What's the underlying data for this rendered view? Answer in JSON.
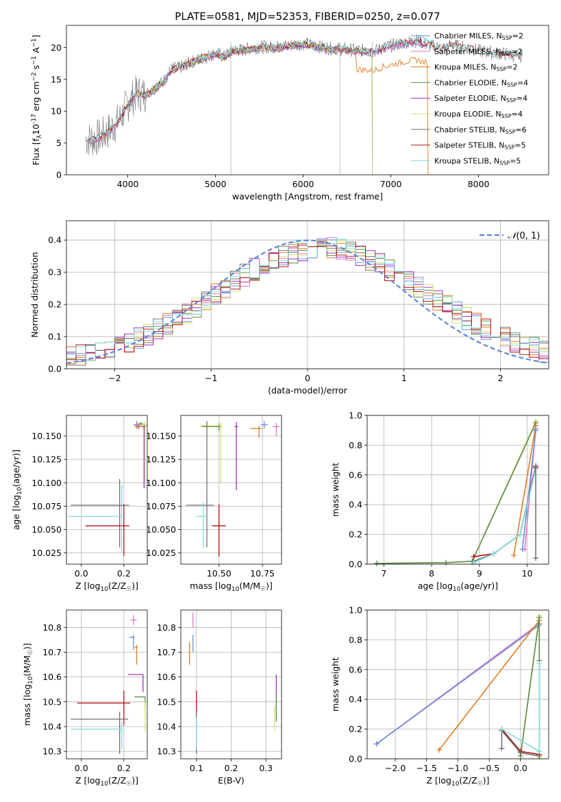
{
  "title": "PLATE=0581, MJD=52353, FIBERID=0250, z=0.077",
  "colors": {
    "chabrier_miles": "#6a8fd6",
    "salpeter_miles": "#e377c2",
    "kroupa_miles": "#de7b1e",
    "chabrier_elodie": "#5a8a4a",
    "salpeter_elodie": "#9a30c0",
    "kroupa_elodie": "#d4e36a",
    "chabrier_stelib": "#707070",
    "salpeter_stelib": "#b01010",
    "kroupa_stelib": "#7fdde0",
    "gaussian": "#5f86d4"
  },
  "chart_data": [
    {
      "id": "spectrum",
      "type": "line",
      "xlabel": "wavelength [Angstrom, rest frame]",
      "ylabel": "Flux [f",
      "ylabel_sub": "λ",
      "ylabel_rest": "10",
      "ylabel_exp": "-17",
      "ylabel_units": " erg cm",
      "xlim": [
        3300,
        8800
      ],
      "ylim": [
        0,
        23.5
      ],
      "xticks": [
        4000,
        5000,
        6000,
        7000,
        8000
      ],
      "yticks": [
        0,
        5,
        10,
        15,
        20
      ],
      "grid": false,
      "legend_position": "top-right",
      "continuum": {
        "x": [
          3500,
          3600,
          3700,
          3800,
          3900,
          4000,
          4100,
          4200,
          4300,
          4400,
          4500,
          4600,
          4700,
          4800,
          4900,
          5000,
          5100,
          5200,
          5300,
          5400,
          5500,
          5600,
          5700,
          5800,
          5900,
          6000,
          6100,
          6200,
          6300,
          6400,
          6500,
          6600,
          6700,
          6800,
          6900,
          7000,
          7100,
          7200,
          7300,
          7400,
          7500,
          7600,
          7700,
          7800,
          7900,
          8000,
          8100,
          8200,
          8300,
          8400,
          8500
        ],
        "y": [
          5.5,
          5.5,
          6.0,
          7.0,
          8.5,
          11.0,
          12.8,
          12.5,
          13.5,
          14.5,
          16.5,
          16.8,
          17.5,
          18.0,
          18.5,
          19.0,
          18.5,
          19.5,
          19.5,
          19.8,
          20.0,
          20.0,
          20.0,
          20.2,
          20.4,
          20.5,
          20.3,
          20.0,
          19.8,
          19.7,
          19.6,
          19.5,
          19.4,
          19.3,
          19.8,
          20.2,
          20.5,
          20.8,
          21.0,
          20.5,
          20.0,
          19.8,
          20.3,
          20.0,
          19.8,
          19.4,
          19.2,
          19.0,
          18.9,
          18.7,
          18.5
        ]
      },
      "series": [
        {
          "name": "Chabrier MILES, N",
          "sub": "SSP",
          "rest": "=2",
          "key": "chabrier_miles"
        },
        {
          "name": "Salpeter MILES, N",
          "sub": "SSP",
          "rest": "=2",
          "key": "salpeter_miles"
        },
        {
          "name": "Kroupa MILES, N",
          "sub": "SSP",
          "rest": "=2",
          "key": "kroupa_miles"
        },
        {
          "name": "Chabrier ELODIE, N",
          "sub": "SSP",
          "rest": "=4",
          "key": "chabrier_elodie"
        },
        {
          "name": "Salpeter ELODIE, N",
          "sub": "SSP",
          "rest": "=4",
          "key": "salpeter_elodie"
        },
        {
          "name": "Kroupa ELODIE, N",
          "sub": "SSP",
          "rest": "=4",
          "key": "kroupa_elodie"
        },
        {
          "name": "Chabrier STELIB, N",
          "sub": "SSP",
          "rest": "=6",
          "key": "chabrier_stelib"
        },
        {
          "name": "Salpeter STELIB, N",
          "sub": "SSP",
          "rest": "=5",
          "key": "salpeter_stelib"
        },
        {
          "name": "Kroupa STELIB, N",
          "sub": "SSP",
          "rest": "=5",
          "key": "kroupa_stelib"
        }
      ]
    },
    {
      "id": "residuals",
      "type": "histogram",
      "xlabel": "(data-model)/error",
      "ylabel": "Normed distribution",
      "xlim": [
        -2.5,
        2.5
      ],
      "ylim": [
        0,
        0.46
      ],
      "xticks": [
        -2,
        -1,
        0,
        1,
        2
      ],
      "yticks": [
        0.0,
        0.1,
        0.2,
        0.3,
        0.4
      ],
      "grid": true,
      "legend_position": "top-right",
      "legend_label": "(0, 1)",
      "bin_width": 0.1
    },
    {
      "id": "z_age",
      "type": "errorbar",
      "xlabel": "Z [log",
      "xlabel_sub": "10",
      "xlabel_rest": "(Z/Z",
      "ylabel": "age  [log",
      "ylabel_sub": "10",
      "ylabel_rest": "(age/yr)]",
      "xlim": [
        -0.07,
        0.31
      ],
      "ylim": [
        10.013,
        10.172
      ],
      "xticks": [
        0.0,
        0.2
      ],
      "yticks": [
        10.025,
        10.05,
        10.075,
        10.1,
        10.125,
        10.15
      ],
      "grid": true,
      "points": [
        {
          "key": "chabrier_miles",
          "x": 0.26,
          "y": 10.162,
          "xe": [
            0.015,
            0.015
          ],
          "ye": [
            0.004,
            0.004
          ]
        },
        {
          "key": "salpeter_miles",
          "x": 0.265,
          "y": 10.161,
          "xe": [
            0.01,
            0.01
          ],
          "ye": [
            0.003,
            0.003
          ]
        },
        {
          "key": "kroupa_miles",
          "x": 0.27,
          "y": 10.16,
          "xe": [
            0.02,
            0.02
          ],
          "ye": [
            0.003,
            0.003
          ]
        },
        {
          "key": "chabrier_elodie",
          "x": 0.28,
          "y": 10.163,
          "xe": [
            0.01,
            0.01
          ],
          "ye": [
            0.002,
            0.002
          ]
        },
        {
          "key": "salpeter_elodie",
          "x": 0.295,
          "y": 10.16,
          "xe": [
            0.01,
            0.01
          ],
          "ye": [
            0.066,
            0.003
          ]
        },
        {
          "key": "kroupa_elodie",
          "x": 0.3,
          "y": 10.162,
          "xe": [
            0.02,
            0.01
          ],
          "ye": [
            0.06,
            0.003
          ]
        },
        {
          "key": "chabrier_stelib",
          "x": 0.18,
          "y": 10.076,
          "xe": [
            0.23,
            0.045
          ],
          "ye": [
            0.045,
            0.028
          ]
        },
        {
          "key": "salpeter_stelib",
          "x": 0.2,
          "y": 10.054,
          "xe": [
            0.18,
            0.025
          ],
          "ye": [
            0.032,
            0.023
          ]
        },
        {
          "key": "kroupa_stelib",
          "x": 0.19,
          "y": 10.064,
          "xe": [
            0.25,
            0.0
          ],
          "ye": [
            0.038,
            0.034
          ]
        }
      ]
    },
    {
      "id": "mass_age",
      "type": "errorbar",
      "xlabel": "mass [log",
      "xlabel_sub": "10",
      "xlabel_rest": "(M/M",
      "xlim": [
        10.28,
        10.86
      ],
      "ylim": [
        10.013,
        10.172
      ],
      "xticks": [
        10.5,
        10.75
      ],
      "xtick_labels": [
        "10.50",
        "10.75"
      ],
      "yticks": [
        10.025,
        10.05,
        10.075,
        10.1,
        10.125,
        10.15
      ],
      "grid": true,
      "points": [
        {
          "key": "chabrier_miles",
          "x": 10.76,
          "y": 10.162,
          "xe": [
            0.02,
            0.02
          ],
          "ye": [
            0.004,
            0.004
          ]
        },
        {
          "key": "salpeter_miles",
          "x": 10.83,
          "y": 10.16,
          "xe": [
            0.02,
            0.02
          ],
          "ye": [
            0.01,
            0.004
          ]
        },
        {
          "key": "kroupa_miles",
          "x": 10.73,
          "y": 10.158,
          "xe": [
            0.05,
            0.02
          ],
          "ye": [
            0.01,
            0.003
          ]
        },
        {
          "key": "chabrier_elodie",
          "x": 10.5,
          "y": 10.16,
          "xe": [
            0.1,
            0.01
          ],
          "ye": [
            0.004,
            0.003
          ]
        },
        {
          "key": "salpeter_elodie",
          "x": 10.6,
          "y": 10.16,
          "xe": [
            0.01,
            0.01
          ],
          "ye": [
            0.068,
            0.005
          ]
        },
        {
          "key": "kroupa_elodie",
          "x": 10.51,
          "y": 10.161,
          "xe": [
            0.12,
            0.01
          ],
          "ye": [
            0.061,
            0.004
          ]
        },
        {
          "key": "chabrier_stelib",
          "x": 10.43,
          "y": 10.076,
          "xe": [
            0.12,
            0.04
          ],
          "ye": [
            0.045,
            0.09
          ]
        },
        {
          "key": "salpeter_stelib",
          "x": 10.5,
          "y": 10.054,
          "xe": [
            0.04,
            0.04
          ],
          "ye": [
            0.033,
            0.023
          ]
        },
        {
          "key": "kroupa_stelib",
          "x": 10.41,
          "y": 10.064,
          "xe": [
            0.04,
            0.02
          ],
          "ye": [
            0.034,
            0.015
          ]
        }
      ]
    },
    {
      "id": "age_weight",
      "type": "line",
      "xlabel": "age  [log",
      "xlabel_sub": "10",
      "xlabel_rest": "(age/yr)]",
      "ylabel": "mass weight",
      "xlim": [
        6.65,
        10.45
      ],
      "ylim": [
        0,
        1.0
      ],
      "xticks": [
        7,
        8,
        9,
        10
      ],
      "yticks": [
        0.0,
        0.2,
        0.4,
        0.6,
        0.8,
        1.0
      ],
      "grid": true,
      "series": [
        {
          "key": "kroupa_elodie",
          "x": [
            6.85,
            8.3,
            8.85,
            10.18
          ],
          "y": [
            0.005,
            0.01,
            0.02,
            0.96
          ]
        },
        {
          "key": "chabrier_elodie",
          "x": [
            6.85,
            8.3,
            8.85,
            10.18
          ],
          "y": [
            0.005,
            0.01,
            0.02,
            0.95
          ]
        },
        {
          "key": "kroupa_miles",
          "x": [
            9.72,
            10.18
          ],
          "y": [
            0.06,
            0.93
          ]
        },
        {
          "key": "salpeter_miles",
          "x": [
            9.95,
            10.18
          ],
          "y": [
            0.1,
            0.91
          ]
        },
        {
          "key": "chabrier_miles",
          "x": [
            9.9,
            10.18
          ],
          "y": [
            0.1,
            0.9
          ]
        },
        {
          "key": "salpeter_stelib",
          "x": [
            8.88,
            9.3,
            9.85,
            10.18
          ],
          "y": [
            0.05,
            0.07,
            0.2,
            0.65
          ]
        },
        {
          "key": "chabrier_stelib",
          "x": [
            8.88,
            9.3,
            9.85,
            10.18
          ],
          "y": [
            0.02,
            0.07,
            0.2,
            0.66
          ]
        },
        {
          "key": "kroupa_stelib",
          "x": [
            8.88,
            9.3,
            9.85,
            10.18
          ],
          "y": [
            0.01,
            0.07,
            0.2,
            0.64
          ]
        },
        {
          "key": "chabrier_stelib",
          "x": [
            10.18,
            10.18
          ],
          "y": [
            0.66,
            0.04
          ]
        }
      ]
    },
    {
      "id": "z_mass",
      "type": "errorbar",
      "xlabel": "Z [log",
      "xlabel_sub": "10",
      "xlabel_rest": "(Z/Z",
      "ylabel": "mass [log",
      "ylabel_sub": "10",
      "ylabel_rest": "(M/M",
      "xlim": [
        -0.07,
        0.31
      ],
      "ylim": [
        10.27,
        10.87
      ],
      "xticks": [
        0.0,
        0.2
      ],
      "yticks": [
        10.3,
        10.4,
        10.5,
        10.6,
        10.7,
        10.8
      ],
      "grid": true,
      "points": [
        {
          "key": "salpeter_miles",
          "x": 0.245,
          "y": 10.83,
          "xe": [
            0.015,
            0.015
          ],
          "ye": [
            0.02,
            0.02
          ]
        },
        {
          "key": "chabrier_miles",
          "x": 0.245,
          "y": 10.76,
          "xe": [
            0.02,
            0.005
          ],
          "ye": [
            0.05,
            0.01
          ]
        },
        {
          "key": "kroupa_miles",
          "x": 0.26,
          "y": 10.72,
          "xe": [
            0.01,
            0.005
          ],
          "ye": [
            0.07,
            0.01
          ]
        },
        {
          "key": "salpeter_elodie",
          "x": 0.29,
          "y": 10.61,
          "xe": [
            0.07,
            0.0
          ],
          "ye": [
            0.07,
            0.0
          ]
        },
        {
          "key": "chabrier_elodie",
          "x": 0.3,
          "y": 10.52,
          "xe": [
            0.05,
            0.0
          ],
          "ye": [
            0.05,
            0.0
          ]
        },
        {
          "key": "kroupa_elodie",
          "x": 0.3,
          "y": 10.5,
          "xe": [
            0.01,
            0.0
          ],
          "ye": [
            0.12,
            0.0
          ]
        },
        {
          "key": "salpeter_stelib",
          "x": 0.2,
          "y": 10.495,
          "xe": [
            0.22,
            0.03
          ],
          "ye": [
            0.09,
            0.05
          ]
        },
        {
          "key": "chabrier_stelib",
          "x": 0.18,
          "y": 10.43,
          "xe": [
            0.23,
            0.04
          ],
          "ye": [
            0.14,
            0.03
          ]
        },
        {
          "key": "kroupa_stelib",
          "x": 0.19,
          "y": 10.39,
          "xe": [
            0.24,
            0.0
          ],
          "ye": [
            0.08,
            0.03
          ]
        }
      ]
    },
    {
      "id": "ebv_mass",
      "type": "errorbar",
      "xlabel": "E(B-V)",
      "xlim": [
        0.055,
        0.345
      ],
      "ylim": [
        10.27,
        10.87
      ],
      "xticks": [
        0.1,
        0.2,
        0.3
      ],
      "yticks": [
        10.3,
        10.4,
        10.5,
        10.6,
        10.7,
        10.8
      ],
      "grid": true,
      "points": [
        {
          "key": "salpeter_miles",
          "x": 0.09,
          "y": 10.83,
          "xe": [
            0,
            0
          ],
          "ye": [
            0.03,
            0.03
          ]
        },
        {
          "key": "chabrier_miles",
          "x": 0.09,
          "y": 10.75,
          "xe": [
            0,
            0
          ],
          "ye": [
            0.05,
            0.02
          ]
        },
        {
          "key": "kroupa_miles",
          "x": 0.08,
          "y": 10.72,
          "xe": [
            0,
            0
          ],
          "ye": [
            0.07,
            0.02
          ]
        },
        {
          "key": "salpeter_elodie",
          "x": 0.33,
          "y": 10.55,
          "xe": [
            0,
            0
          ],
          "ye": [
            0.08,
            0.06
          ]
        },
        {
          "key": "chabrier_elodie",
          "x": 0.33,
          "y": 10.5,
          "xe": [
            0,
            0
          ],
          "ye": [
            0.08,
            0.03
          ]
        },
        {
          "key": "kroupa_elodie",
          "x": 0.325,
          "y": 10.45,
          "xe": [
            0,
            0
          ],
          "ye": [
            0.07,
            0.03
          ]
        },
        {
          "key": "salpeter_stelib",
          "x": 0.1,
          "y": 10.495,
          "xe": [
            0,
            0
          ],
          "ye": [
            0.09,
            0.05
          ]
        },
        {
          "key": "chabrier_stelib",
          "x": 0.1,
          "y": 10.4,
          "xe": [
            0,
            0
          ],
          "ye": [
            0.11,
            0.06
          ]
        },
        {
          "key": "kroupa_stelib",
          "x": 0.1,
          "y": 10.39,
          "xe": [
            0,
            0
          ],
          "ye": [
            0.08,
            0.05
          ]
        }
      ]
    },
    {
      "id": "z_weight",
      "type": "line",
      "xlabel": "Z [log",
      "xlabel_sub": "10",
      "xlabel_rest": "(Z/Z",
      "ylabel": "mass weight",
      "xlim": [
        -2.45,
        0.45
      ],
      "ylim": [
        0,
        1.0
      ],
      "xticks": [
        -2.0,
        -1.5,
        -1.0,
        -0.5,
        0.0
      ],
      "yticks": [
        0.0,
        0.2,
        0.4,
        0.6,
        0.8,
        1.0
      ],
      "grid": true,
      "series": [
        {
          "key": "salpeter_miles",
          "x": [
            -2.3,
            0.3
          ],
          "y": [
            0.1,
            0.91
          ]
        },
        {
          "key": "chabrier_miles",
          "x": [
            -2.3,
            0.3
          ],
          "y": [
            0.1,
            0.9
          ]
        },
        {
          "key": "kroupa_miles",
          "x": [
            -1.3,
            0.3
          ],
          "y": [
            0.06,
            0.93
          ]
        },
        {
          "key": "kroupa_elodie",
          "x": [
            0.0,
            0.3,
            0.3,
            0.3
          ],
          "y": [
            0.02,
            0.96,
            0.05,
            0.01
          ]
        },
        {
          "key": "chabrier_elodie",
          "x": [
            0.0,
            0.3,
            0.3
          ],
          "y": [
            0.02,
            0.95,
            0.02
          ]
        },
        {
          "key": "salpeter_stelib",
          "x": [
            -0.3,
            0.0,
            0.3
          ],
          "y": [
            0.2,
            0.05,
            0.03
          ]
        },
        {
          "key": "chabrier_stelib",
          "x": [
            -0.3,
            -0.3,
            0.0,
            0.3,
            0.3
          ],
          "y": [
            0.07,
            0.19,
            0.04,
            0.02,
            0.66
          ]
        },
        {
          "key": "kroupa_stelib",
          "x": [
            -0.3,
            0.3,
            0.3
          ],
          "y": [
            0.2,
            0.05,
            0.64
          ]
        }
      ]
    }
  ]
}
